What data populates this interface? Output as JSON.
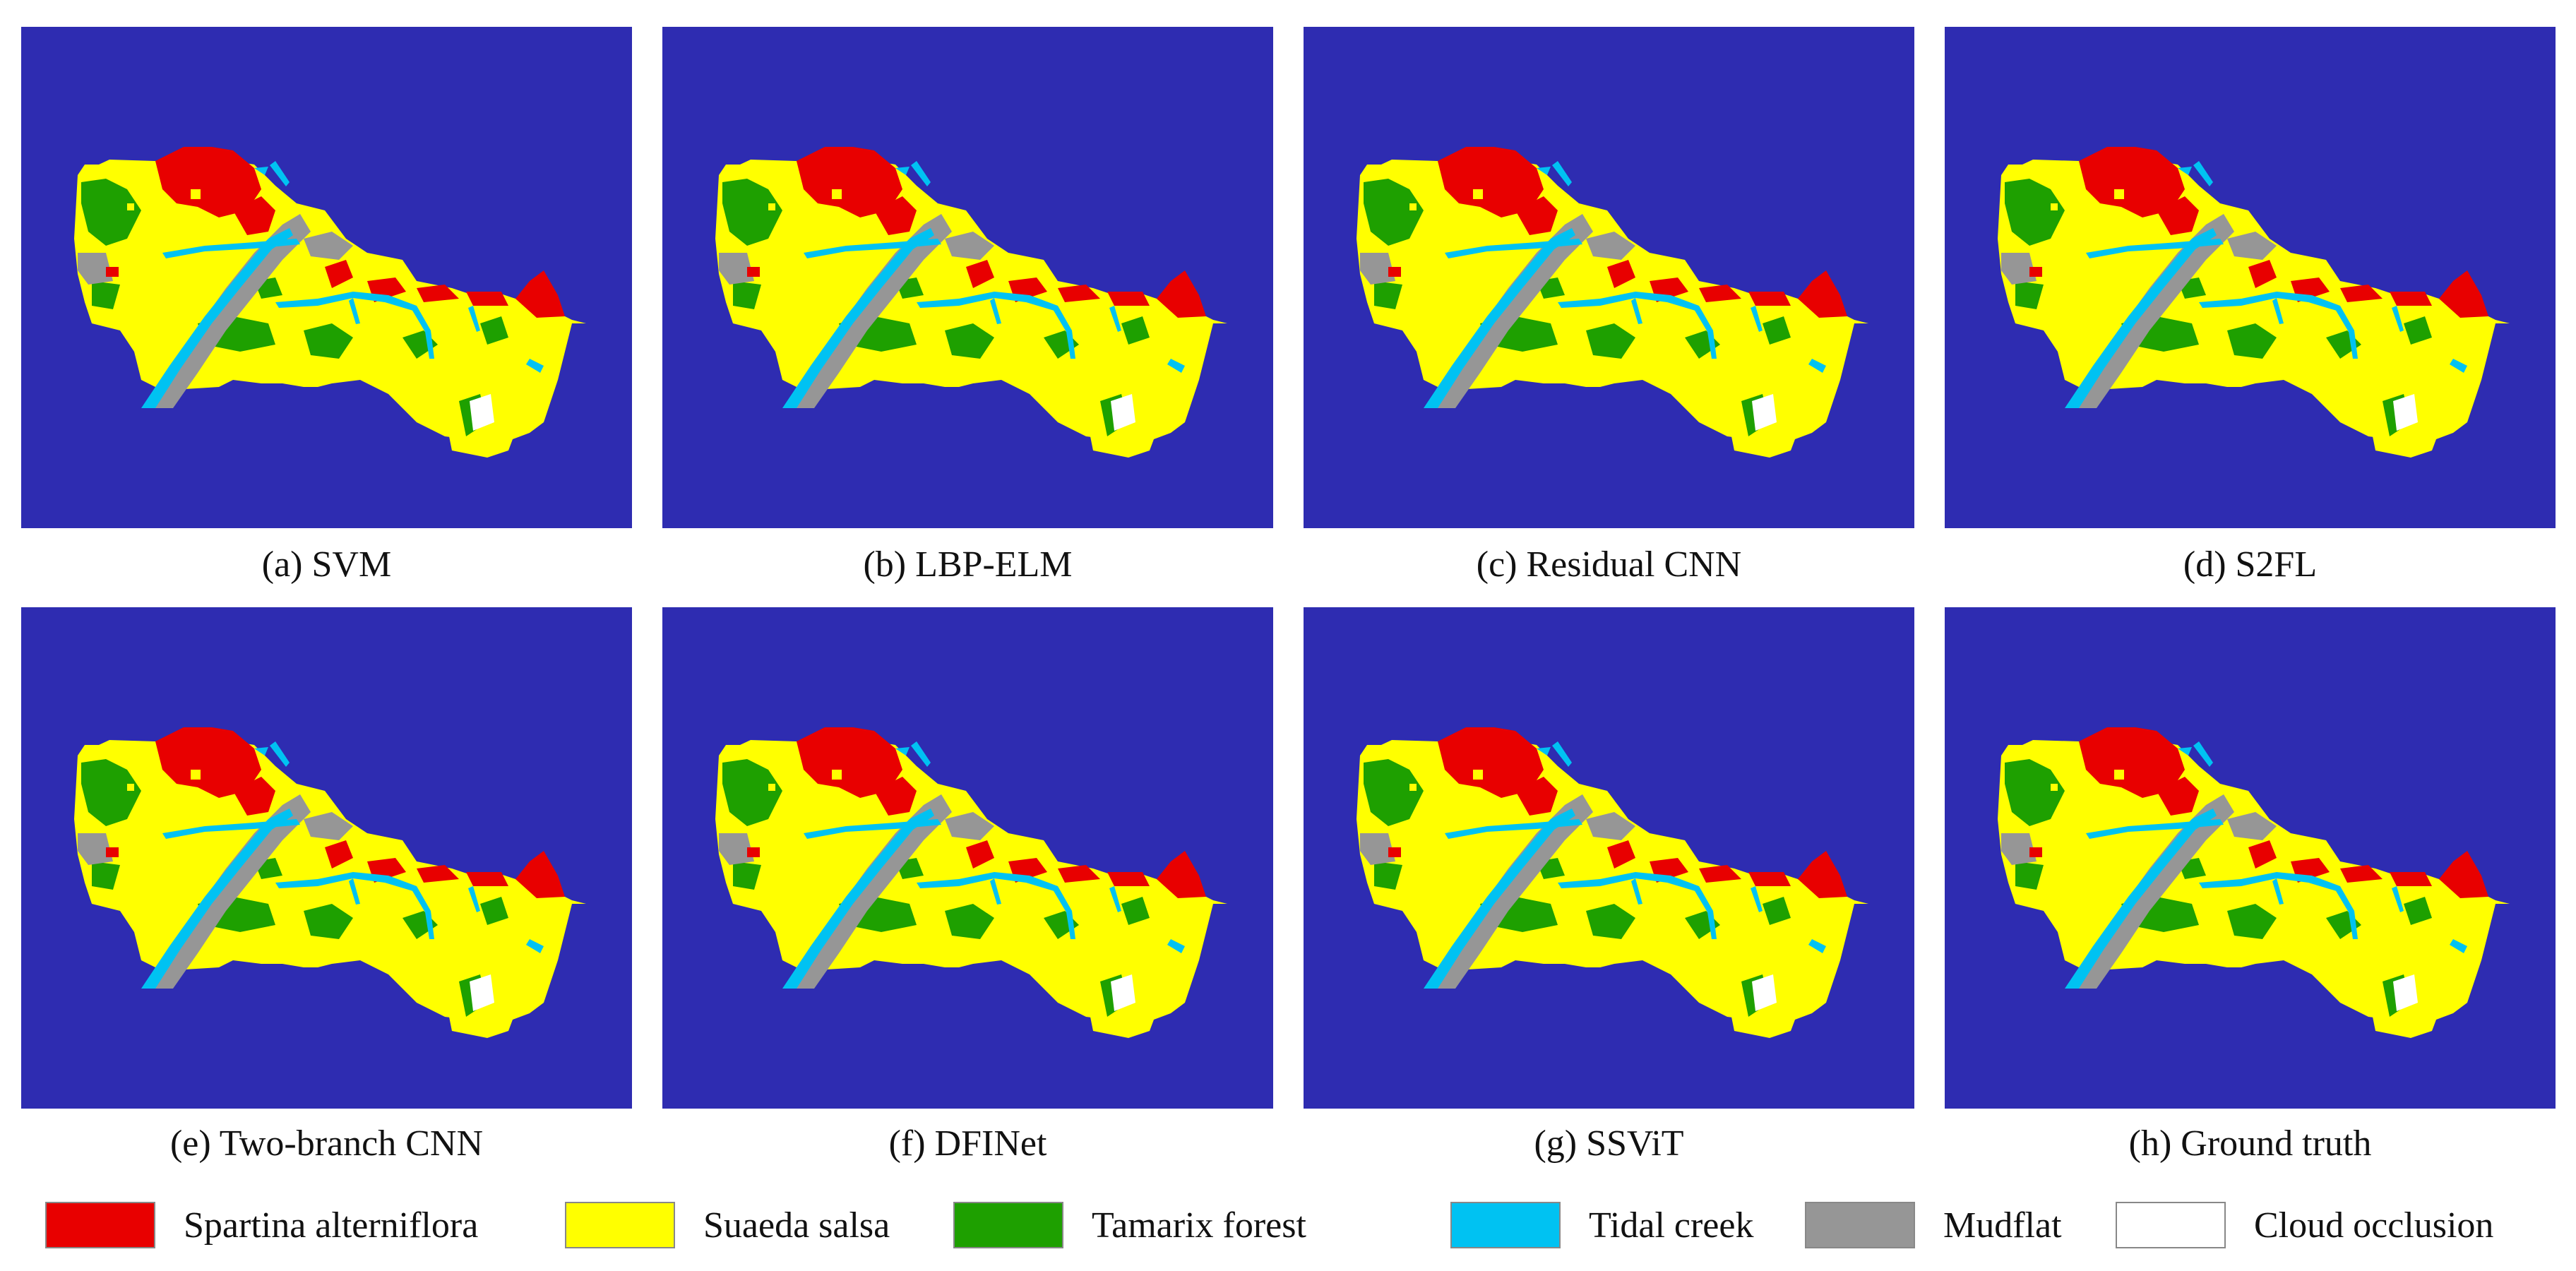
{
  "colors": {
    "background": "#2e2cb1",
    "spartina": "#e80000",
    "suaeda": "#ffff00",
    "tamarix": "#1ea000",
    "creek": "#00c2f2",
    "mudflat": "#969696",
    "cloud": "#ffffff"
  },
  "panels": [
    {
      "id": "a",
      "caption": "(a) SVM"
    },
    {
      "id": "b",
      "caption": "(b) LBP-ELM"
    },
    {
      "id": "c",
      "caption": "(c) Residual CNN"
    },
    {
      "id": "d",
      "caption": "(d) S2FL"
    },
    {
      "id": "e",
      "caption": "(e) Two-branch CNN"
    },
    {
      "id": "f",
      "caption": "(f) DFINet"
    },
    {
      "id": "g",
      "caption": "(g) SSViT"
    },
    {
      "id": "h",
      "caption": "(h) Ground truth"
    }
  ],
  "legend": [
    {
      "label": "Spartina alterniflora",
      "color": "#e80000"
    },
    {
      "label": "Suaeda salsa",
      "color": "#ffff00"
    },
    {
      "label": "Tamarix forest",
      "color": "#1ea000"
    },
    {
      "label": "Tidal creek",
      "color": "#00c2f2"
    },
    {
      "label": "Mudflat",
      "color": "#969696"
    },
    {
      "label": "Cloud occlusion",
      "color": "#ffffff"
    }
  ]
}
